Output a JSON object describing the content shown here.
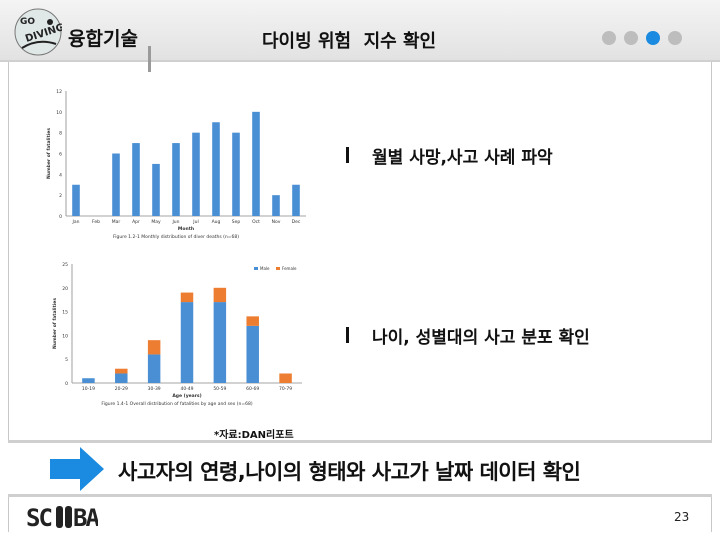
{
  "header": {
    "brand": "융합기술",
    "title": "다이빙 위험  지수 확인",
    "dots": [
      false,
      false,
      true,
      false
    ]
  },
  "bullets": [
    "월별 사망,사고 사례 파악",
    "나이, 성별대의 사고 분포 확인"
  ],
  "source_note": "*자료:DAN리포트",
  "banner_text": "사고자의 연령,나이의 형태와 사고가 날짜 데이터 확인",
  "page_number": "23",
  "colors": {
    "bar_blue": "#4a8fd4",
    "bar_orange": "#ed7d31",
    "accent_dot": "#1a8be0",
    "arrow": "#1a8be0"
  },
  "chart_data": [
    {
      "type": "bar",
      "categories": [
        "Jan",
        "Feb",
        "Mar",
        "Apr",
        "May",
        "Jun",
        "Jul",
        "Aug",
        "Sep",
        "Oct",
        "Nov",
        "Dec"
      ],
      "values": [
        3,
        0,
        6,
        7,
        5,
        7,
        8,
        9,
        8,
        10,
        2,
        3
      ],
      "ylim": [
        0,
        12
      ],
      "yticks": [
        0,
        2,
        4,
        6,
        8,
        10,
        12
      ],
      "xlabel": "Month",
      "ylabel": "Number of fatalities",
      "caption": "Figure 1.2-1 Monthly distribution of diver deaths (n=68)",
      "grid": false
    },
    {
      "type": "bar",
      "stacked": true,
      "categories": [
        "10-19",
        "20-29",
        "30-39",
        "40-49",
        "50-59",
        "60-69",
        "70-79"
      ],
      "series": [
        {
          "name": "Male",
          "values": [
            1,
            2,
            6,
            17,
            17,
            12,
            0
          ]
        },
        {
          "name": "Female",
          "values": [
            0,
            1,
            3,
            2,
            3,
            2,
            2
          ]
        }
      ],
      "ylim": [
        0,
        25
      ],
      "yticks": [
        0,
        5,
        10,
        15,
        20,
        25
      ],
      "xlabel": "Age (years)",
      "ylabel": "Number of fatalities",
      "caption": "Figure 1.4-1 Overall distribution of fatalities by age and sex (n=68)",
      "legend": "top-right",
      "grid": false
    }
  ]
}
